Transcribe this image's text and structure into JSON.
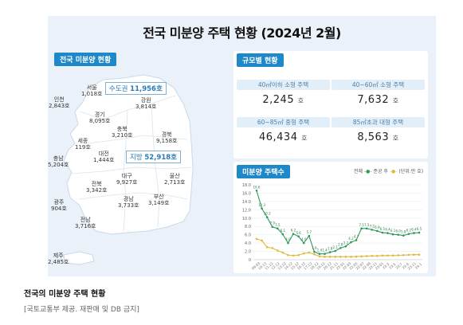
{
  "title": "전국 미분양 주택 현황 (2024년 2월)",
  "map_section": {
    "badge": "전국 미분양 현황",
    "capital": {
      "label": "수도권",
      "value": "11,956호"
    },
    "provincial": {
      "label": "지방",
      "value": "52,918호"
    },
    "regions": [
      {
        "name": "서울",
        "value": "1,018호"
      },
      {
        "name": "인천",
        "value": "2,843호"
      },
      {
        "name": "경기",
        "value": "8,095호"
      },
      {
        "name": "강원",
        "value": "3,814호"
      },
      {
        "name": "충북",
        "value": "3,210호"
      },
      {
        "name": "세종",
        "value": "119호"
      },
      {
        "name": "충남",
        "value": "5,204호"
      },
      {
        "name": "대전",
        "value": "1,444호"
      },
      {
        "name": "경북",
        "value": "9,158호"
      },
      {
        "name": "전북",
        "value": "3,342호"
      },
      {
        "name": "대구",
        "value": "9,927호"
      },
      {
        "name": "울산",
        "value": "2,713호"
      },
      {
        "name": "경남",
        "value": "3,733호"
      },
      {
        "name": "부산",
        "value": "3,149호"
      },
      {
        "name": "광주",
        "value": "904호"
      },
      {
        "name": "전남",
        "value": "3,716호"
      },
      {
        "name": "제주",
        "value": "2,485호"
      }
    ]
  },
  "size_section": {
    "badge": "규모별 현황",
    "unit": "호",
    "cells": [
      {
        "label": "40㎡이하 소형 주택",
        "value": "2,245"
      },
      {
        "label": "40~60㎡ 소형 주택",
        "value": "7,632"
      },
      {
        "label": "60~85㎡ 중형 주택",
        "value": "46,434"
      },
      {
        "label": "85㎡초과 대형 주택",
        "value": "8,563"
      }
    ]
  },
  "trend_section": {
    "badge": "미분양 주택수",
    "legend_total": "전체",
    "legend_after": "준공 후",
    "unit_note": "(단위:만 호)"
  },
  "chart_data": {
    "type": "line",
    "ylim": [
      0,
      18
    ],
    "y_ticks": [
      "0",
      "2.0",
      "4.0",
      "6.0",
      "8.0",
      "10.0",
      "12.0",
      "14.0",
      "16.0",
      "18.0"
    ],
    "x_tick_labels": [
      "09.03",
      "10.12",
      "11.12",
      "12.12",
      "13.12",
      "14.12",
      "15.12",
      "16.12",
      "17.12",
      "18.12",
      "19.12",
      "20.12",
      "21.11",
      "22.01",
      "22.03",
      "22.05",
      "22.07",
      "22.09",
      "22.11",
      "23.01",
      "23.3",
      "23.5",
      "23.7",
      "23.9",
      "23.11",
      "24.1"
    ],
    "series": [
      {
        "name": "전체",
        "color": "#2e9a5a",
        "values": [
          16.6,
          12.3,
          10.2,
          7.9,
          7.5,
          6.1,
          4.0,
          6.2,
          5.6,
          4.0,
          5.7,
          1.9,
          1.4,
          1.4,
          1.8,
          2.1,
          2.8,
          3.2,
          4.2,
          4.7,
          7.5,
          7.5,
          7.2,
          6.9,
          6.5,
          6.4,
          6.1,
          6.0,
          5.8,
          6.2,
          6.4,
          6.5
        ],
        "labels": [
          "16.6",
          "12.3",
          "10.2",
          "7.9",
          "7.5",
          "6.1",
          "4.0",
          "6.2",
          "5.6",
          "4.0",
          "5.7",
          "1.9",
          "1.4",
          "1.4",
          "1.8",
          "2.1",
          "2.8",
          "3.2",
          "4.2",
          "4.7",
          "7.5",
          "7.5",
          "7.2",
          "6.9",
          "6.5",
          "6.4",
          "6.1",
          "6.0",
          "5.8",
          "6.2",
          "6.4",
          "6.5"
        ]
      },
      {
        "name": "준공 후",
        "color": "#e0b93a",
        "values": [
          5.0,
          4.6,
          3.0,
          2.8,
          2.2,
          1.7,
          1.1,
          1.0,
          1.1,
          1.5,
          1.7,
          1.3,
          0.8,
          0.7,
          0.7,
          0.7,
          0.7,
          0.7,
          0.7,
          0.75,
          0.8,
          0.85,
          0.9,
          0.9,
          1.0,
          1.0,
          1.0,
          1.05,
          1.1,
          1.15,
          1.2,
          1.2
        ]
      }
    ]
  },
  "caption": "전국의 미분양 주택 현황",
  "source": "[국토교통부 제공. 재판매 및 DB 금지]"
}
